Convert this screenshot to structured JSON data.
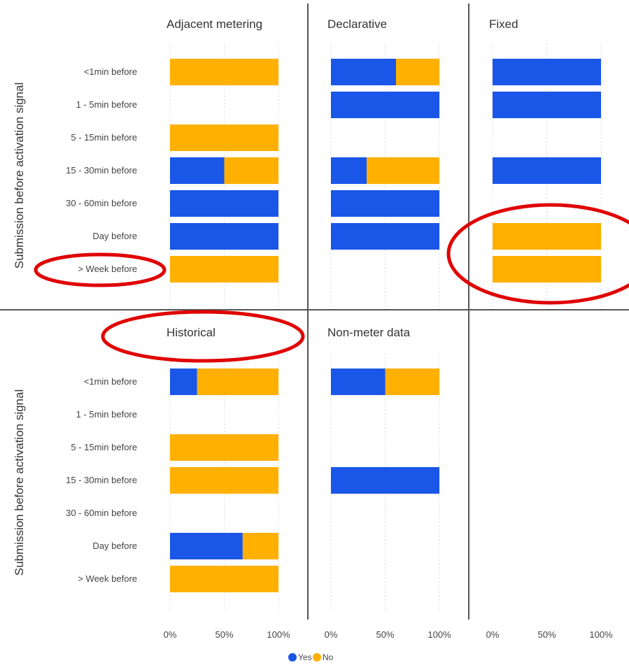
{
  "chart_data": {
    "type": "bar",
    "stacked": true,
    "orientation": "horizontal",
    "layout": "facet-grid",
    "ylabel": "Submission before activation signal",
    "x_ticks": [
      "0%",
      "50%",
      "100%"
    ],
    "xlim": [
      0,
      100
    ],
    "categories": [
      "<1min before",
      "1 - 5min before",
      "5 - 15min before",
      "15 - 30min before",
      "30 - 60min before",
      "Day before",
      "> Week before"
    ],
    "legend": {
      "placement": "bottom-center",
      "items": [
        {
          "name": "Yes",
          "color": "#1a56e8"
        },
        {
          "name": "No",
          "color": "#ffb000"
        }
      ]
    },
    "panels": [
      {
        "title": "Adjacent metering",
        "row": 0,
        "col": 0,
        "series": [
          {
            "name": "Yes",
            "values": [
              0,
              null,
              0,
              50,
              100,
              100,
              0
            ]
          },
          {
            "name": "No",
            "values": [
              100,
              null,
              100,
              50,
              0,
              0,
              100
            ]
          }
        ]
      },
      {
        "title": "Declarative",
        "row": 0,
        "col": 1,
        "series": [
          {
            "name": "Yes",
            "values": [
              60,
              100,
              null,
              33,
              100,
              100,
              null
            ]
          },
          {
            "name": "No",
            "values": [
              40,
              0,
              null,
              67,
              0,
              0,
              null
            ]
          }
        ]
      },
      {
        "title": "Fixed",
        "row": 0,
        "col": 2,
        "series": [
          {
            "name": "Yes",
            "values": [
              100,
              100,
              null,
              100,
              null,
              0,
              0
            ]
          },
          {
            "name": "No",
            "values": [
              0,
              0,
              null,
              0,
              null,
              100,
              100
            ]
          }
        ]
      },
      {
        "title": "Historical",
        "row": 1,
        "col": 0,
        "series": [
          {
            "name": "Yes",
            "values": [
              25,
              null,
              0,
              0,
              null,
              67,
              0
            ]
          },
          {
            "name": "No",
            "values": [
              75,
              null,
              100,
              100,
              null,
              33,
              100
            ]
          }
        ]
      },
      {
        "title": "Non-meter data",
        "row": 1,
        "col": 1,
        "series": [
          {
            "name": "Yes",
            "values": [
              50,
              null,
              null,
              100,
              null,
              null,
              null
            ]
          },
          {
            "name": "No",
            "values": [
              50,
              null,
              null,
              0,
              null,
              null,
              null
            ]
          }
        ]
      }
    ],
    "annotations": [
      {
        "type": "ellipse",
        "color": "#e00000",
        "target": "> Week before label (top row)"
      },
      {
        "type": "ellipse",
        "color": "#e00000",
        "target": "Fixed: Day before and > Week before bars"
      },
      {
        "type": "ellipse",
        "color": "#e00000",
        "target": "Historical title"
      }
    ]
  }
}
